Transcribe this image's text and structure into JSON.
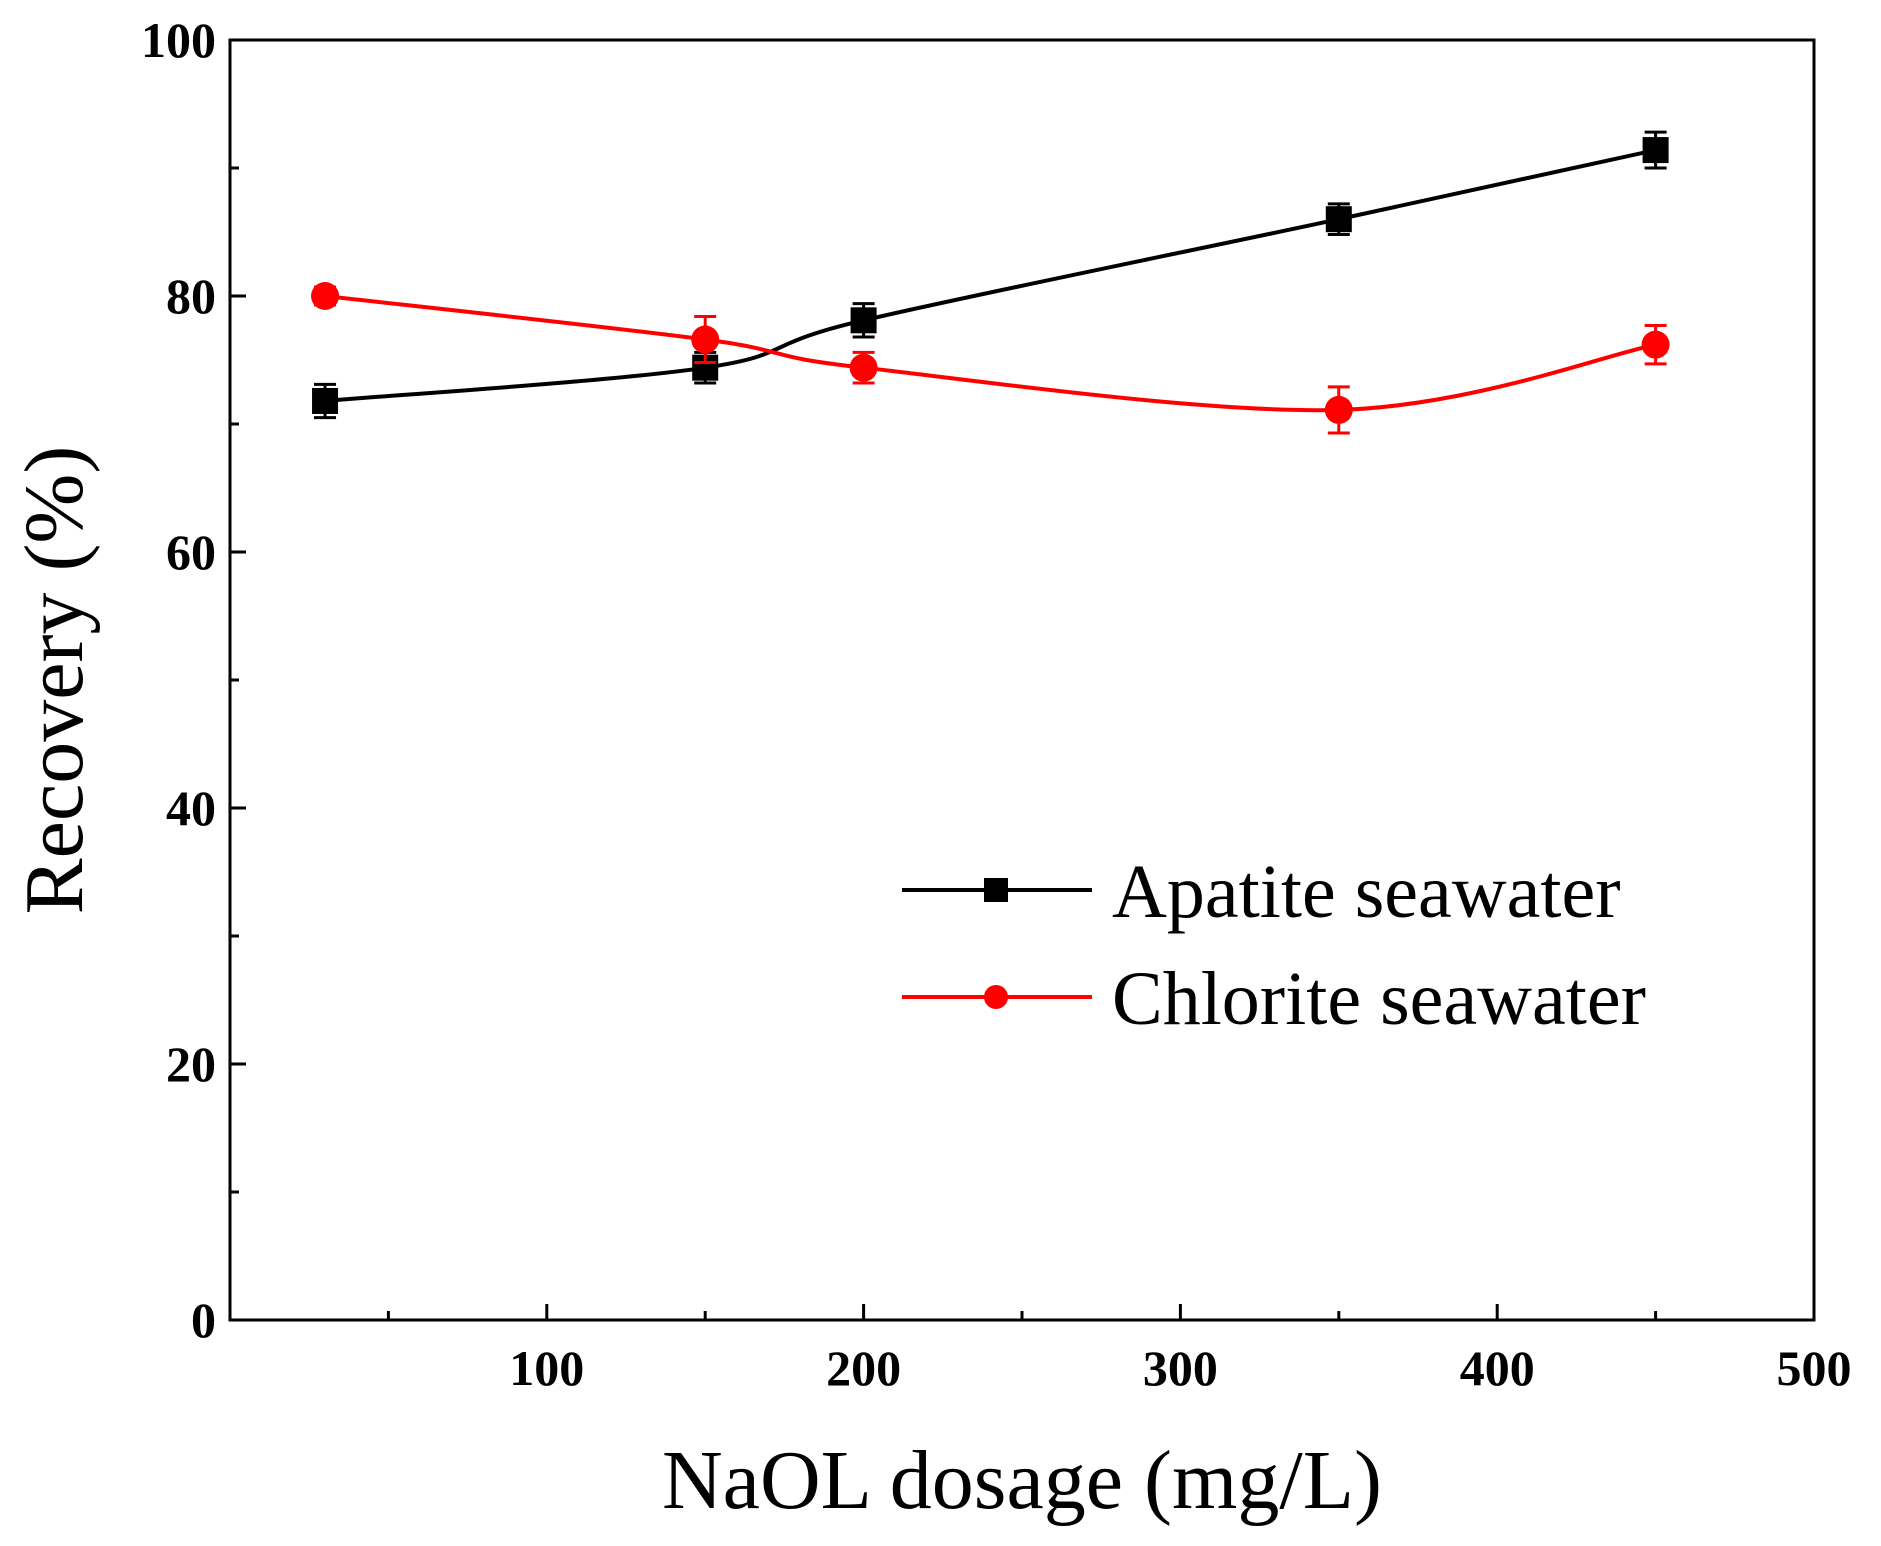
{
  "chart_data": {
    "type": "line",
    "title": "",
    "xlabel": "NaOL dosage (mg/L)",
    "ylabel": "Recovery (%)",
    "xlim": [
      0,
      500
    ],
    "ylim": [
      0,
      100
    ],
    "x_ticks": [
      100,
      200,
      300,
      400,
      500
    ],
    "x_tick_labels": [
      "100",
      "200",
      "300",
      "400",
      "500"
    ],
    "y_ticks": [
      0,
      20,
      40,
      60,
      80,
      100
    ],
    "y_tick_labels": [
      "0",
      "20",
      "40",
      "60",
      "80",
      "100"
    ],
    "grid": false,
    "legend_position": "center-right",
    "series": [
      {
        "name": "Apatite seawater",
        "color": "#000000",
        "marker": "square",
        "x": [
          30,
          150,
          200,
          350,
          450
        ],
        "values": [
          71.8,
          74.4,
          78.1,
          86.0,
          91.4
        ],
        "errors": [
          1.3,
          1.2,
          1.3,
          1.2,
          1.4
        ]
      },
      {
        "name": "Chlorite seawater",
        "color": "#ff0000",
        "marker": "circle",
        "x": [
          30,
          150,
          200,
          350,
          450
        ],
        "values": [
          80.0,
          76.6,
          74.4,
          71.1,
          76.2
        ],
        "errors": [
          0.7,
          1.8,
          1.2,
          1.8,
          1.5
        ]
      }
    ]
  }
}
